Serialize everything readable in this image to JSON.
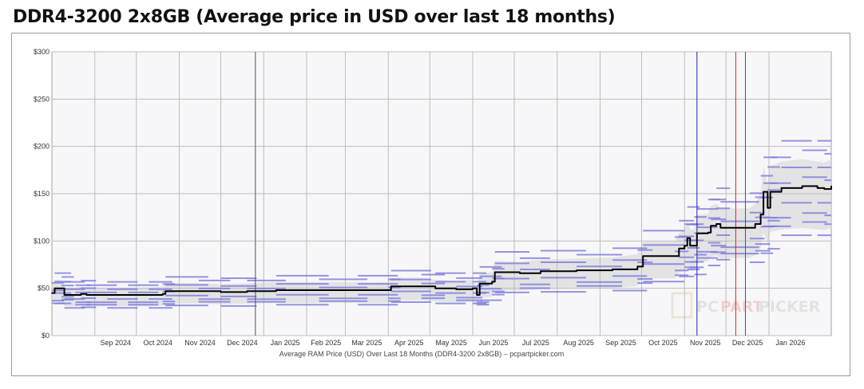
{
  "page": {
    "title": "DDR4-3200 2x8GB (Average price in USD over last 18 months)",
    "caption": "Average RAM Price (USD) Over Last 18 Months (DDR4-3200 2x8GB) – pcpartpicker.com",
    "watermark_a": "PC",
    "watermark_b": "PART",
    "watermark_c": "PICKER"
  },
  "colors": {
    "avg_line": "#000000",
    "range_fill": "#dcdcdc",
    "retailer_lines": "#7b7bdc",
    "marker_blue": "#1f1fb4",
    "marker_red": "#e02020",
    "marker_dark": "#555555",
    "grid": "#bdbdbd",
    "plot_bg": "#f7f7f9"
  },
  "chart_data": {
    "type": "line",
    "title": "",
    "xlabel": "Average RAM Price (USD) Over Last 18 Months (DDR4-3200 2x8GB) – pcpartpicker.com",
    "ylabel": "",
    "x_ticks": [
      "Sep 2024",
      "Oct 2024",
      "Nov 2024",
      "Dec 2024",
      "Jan 2025",
      "Feb 2025",
      "Mar 2025",
      "Apr 2025",
      "May 2025",
      "Jun 2025",
      "Jul 2025",
      "Aug 2025",
      "Sep 2025",
      "Oct 2025",
      "Nov 2025",
      "Dec 2025",
      "Jan 2026"
    ],
    "y_ticks": [
      "$0",
      "$50",
      "$100",
      "$150",
      "$200",
      "$250",
      "$300"
    ],
    "ylim": [
      0,
      300
    ],
    "xlim": [
      "2024-08-01",
      "2026-02-15"
    ],
    "grid": true,
    "markers": [
      {
        "date": "2024-12-26",
        "color": "dark"
      },
      {
        "date": "2025-11-10",
        "color": "blue"
      },
      {
        "date": "2025-12-08",
        "color": "red"
      },
      {
        "date": "2025-12-15",
        "color": "dark"
      }
    ],
    "series": [
      {
        "values": [
          [
            "2024-08-01",
            45
          ],
          [
            "2024-08-03",
            50
          ],
          [
            "2024-08-08",
            50
          ],
          [
            "2024-08-10",
            43
          ],
          [
            "2024-08-18",
            43
          ],
          [
            "2024-08-22",
            44
          ],
          [
            "2024-08-26",
            43
          ],
          [
            "2024-09-10",
            43
          ],
          [
            "2024-09-25",
            43
          ],
          [
            "2024-10-10",
            43
          ],
          [
            "2024-10-20",
            44
          ],
          [
            "2024-10-22",
            47
          ],
          [
            "2024-11-15",
            47
          ],
          [
            "2024-12-01",
            46
          ],
          [
            "2024-12-20",
            47
          ],
          [
            "2025-01-10",
            48
          ],
          [
            "2025-02-10",
            48
          ],
          [
            "2025-03-10",
            48
          ],
          [
            "2025-04-01",
            48
          ],
          [
            "2025-04-03",
            52
          ],
          [
            "2025-04-25",
            52
          ],
          [
            "2025-05-05",
            50
          ],
          [
            "2025-05-20",
            49
          ],
          [
            "2025-06-01",
            50
          ],
          [
            "2025-06-04",
            43
          ],
          [
            "2025-06-06",
            55
          ],
          [
            "2025-06-15",
            57
          ],
          [
            "2025-06-17",
            67
          ],
          [
            "2025-07-05",
            66
          ],
          [
            "2025-07-20",
            68
          ],
          [
            "2025-08-15",
            69
          ],
          [
            "2025-09-10",
            70
          ],
          [
            "2025-09-28",
            73
          ],
          [
            "2025-10-02",
            84
          ],
          [
            "2025-10-25",
            84
          ],
          [
            "2025-10-28",
            92
          ],
          [
            "2025-11-01",
            95
          ],
          [
            "2025-11-03",
            103
          ],
          [
            "2025-11-05",
            95
          ],
          [
            "2025-11-08",
            95
          ],
          [
            "2025-11-10",
            108
          ],
          [
            "2025-11-18",
            109
          ],
          [
            "2025-11-20",
            116
          ],
          [
            "2025-11-24",
            118
          ],
          [
            "2025-11-27",
            114
          ],
          [
            "2025-12-18",
            114
          ],
          [
            "2025-12-22",
            118
          ],
          [
            "2025-12-26",
            128
          ],
          [
            "2025-12-28",
            152
          ],
          [
            "2025-12-31",
            135
          ],
          [
            "2026-01-02",
            152
          ],
          [
            "2026-01-10",
            156
          ],
          [
            "2026-01-25",
            158
          ],
          [
            "2026-02-05",
            156
          ],
          [
            "2026-02-10",
            155
          ],
          [
            "2026-02-15",
            158
          ]
        ]
      }
    ]
  }
}
